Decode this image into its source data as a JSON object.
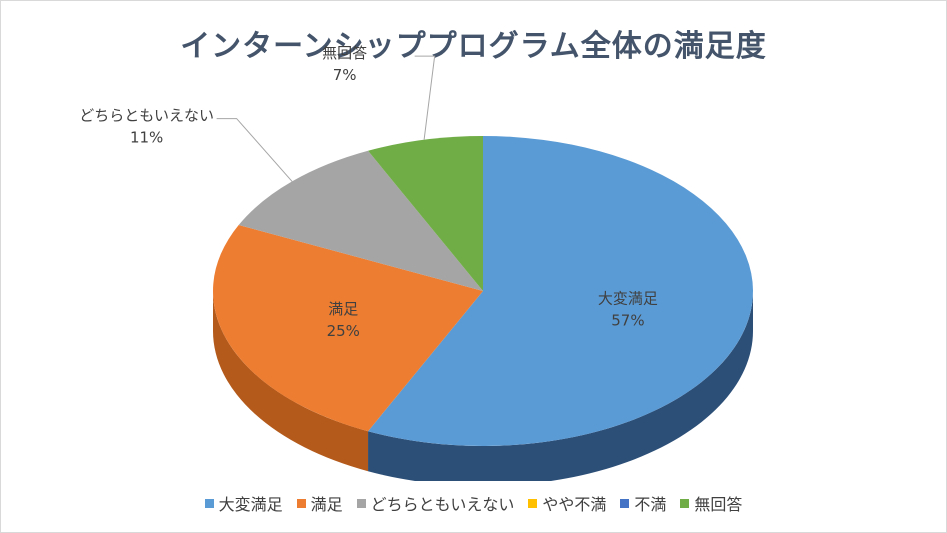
{
  "chart_data": {
    "type": "pie",
    "title": "インターンシッププログラム全体の満足度",
    "categories": [
      "大変満足",
      "満足",
      "どちらともいえない",
      "やや不満",
      "不満",
      "無回答"
    ],
    "values": [
      57,
      25,
      11,
      0,
      0,
      7
    ],
    "value_labels": [
      "57%",
      "25%",
      "11%",
      "",
      "",
      "7%"
    ],
    "colors": [
      "#5b9bd5",
      "#ed7d31",
      "#a5a5a5",
      "#ffc000",
      "#4472c4",
      "#70ad47"
    ],
    "side_colors": [
      "#2c4f78",
      "#b45a1b",
      "#7a7a7a",
      "#c79600",
      "#2f4f8f",
      "#4f8032"
    ],
    "legend_position": "bottom",
    "style": "3d-pie"
  }
}
